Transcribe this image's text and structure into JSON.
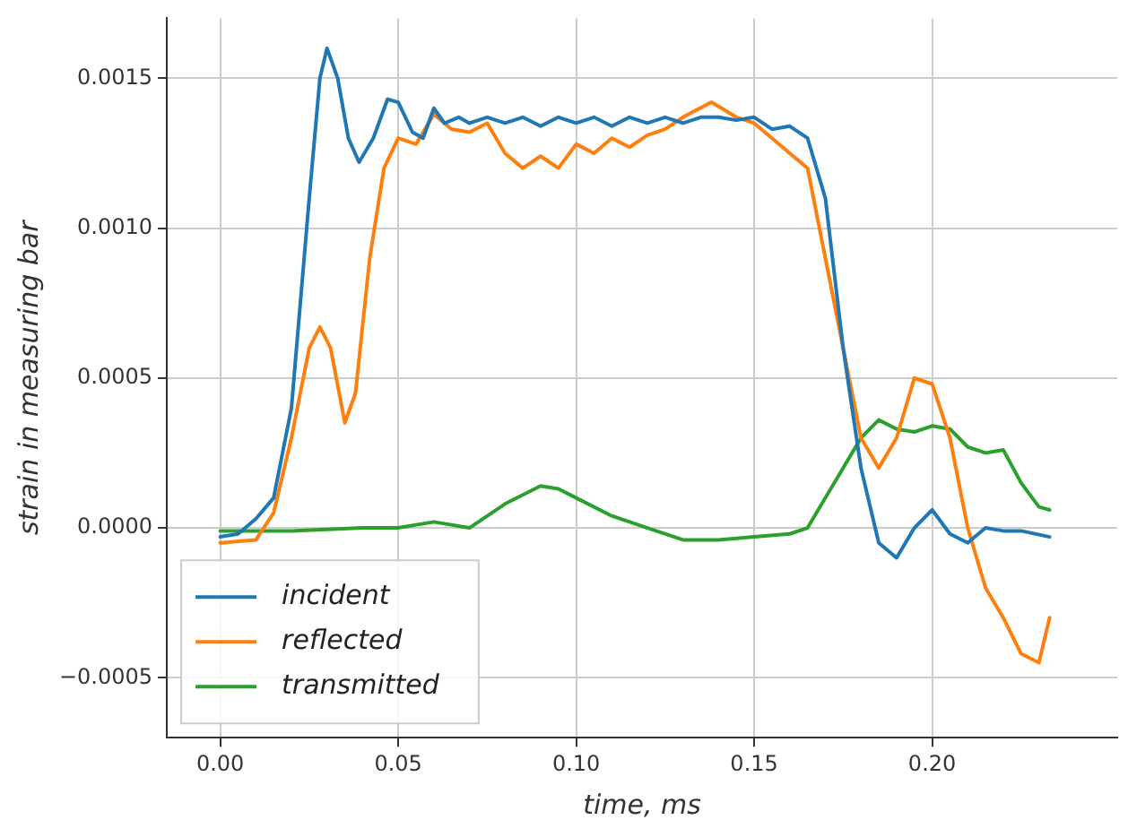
{
  "chart_data": {
    "type": "line",
    "xlabel": "time, ms",
    "ylabel": "strain in measuring bar",
    "xlim": [
      -0.015,
      0.252
    ],
    "ylim": [
      -0.0007,
      0.0017
    ],
    "xticks": [
      {
        "value": 0,
        "label": "0.00"
      },
      {
        "value": 0.05,
        "label": "0.05"
      },
      {
        "value": 0.1,
        "label": "0.10"
      },
      {
        "value": 0.15,
        "label": "0.15"
      },
      {
        "value": 0.2,
        "label": "0.20"
      }
    ],
    "yticks": [
      {
        "value": -0.0005,
        "label": "−0.0005"
      },
      {
        "value": 0,
        "label": "0.0000"
      },
      {
        "value": 0.0005,
        "label": "0.0005"
      },
      {
        "value": 0.001,
        "label": "0.0010"
      },
      {
        "value": 0.0015,
        "label": "0.0015"
      }
    ],
    "grid": true,
    "legend": "bottom left",
    "marker": "none",
    "line_style": "solid",
    "series": [
      {
        "name": "incident",
        "color": "#1f77b4",
        "x": [
          0,
          0.005,
          0.01,
          0.015,
          0.02,
          0.025,
          0.028,
          0.03,
          0.033,
          0.036,
          0.039,
          0.043,
          0.047,
          0.05,
          0.054,
          0.057,
          0.06,
          0.063,
          0.067,
          0.07,
          0.075,
          0.08,
          0.085,
          0.09,
          0.095,
          0.1,
          0.105,
          0.11,
          0.115,
          0.12,
          0.125,
          0.13,
          0.135,
          0.14,
          0.145,
          0.15,
          0.155,
          0.16,
          0.165,
          0.17,
          0.175,
          0.18,
          0.185,
          0.19,
          0.195,
          0.2,
          0.205,
          0.21,
          0.215,
          0.22,
          0.225,
          0.233
        ],
        "values": [
          -3e-05,
          -2e-05,
          3e-05,
          0.0001,
          0.0004,
          0.0011,
          0.0015,
          0.0016,
          0.0015,
          0.0013,
          0.00122,
          0.0013,
          0.00143,
          0.00142,
          0.00132,
          0.0013,
          0.0014,
          0.00135,
          0.00137,
          0.00135,
          0.00137,
          0.00135,
          0.00137,
          0.00134,
          0.00137,
          0.00135,
          0.00137,
          0.00134,
          0.00137,
          0.00135,
          0.00137,
          0.00135,
          0.00137,
          0.00137,
          0.00136,
          0.00137,
          0.00133,
          0.00134,
          0.0013,
          0.0011,
          0.0006,
          0.0002,
          -5e-05,
          -0.0001,
          0,
          6e-05,
          -2e-05,
          -5e-05,
          0,
          -1e-05,
          -1e-05,
          -3e-05
        ]
      },
      {
        "name": "reflected",
        "color": "#ff7f0e",
        "x": [
          0,
          0.01,
          0.015,
          0.02,
          0.025,
          0.028,
          0.031,
          0.035,
          0.038,
          0.042,
          0.046,
          0.05,
          0.055,
          0.06,
          0.065,
          0.07,
          0.075,
          0.08,
          0.085,
          0.09,
          0.095,
          0.1,
          0.105,
          0.11,
          0.115,
          0.12,
          0.125,
          0.13,
          0.138,
          0.145,
          0.15,
          0.155,
          0.16,
          0.165,
          0.17,
          0.175,
          0.18,
          0.185,
          0.19,
          0.195,
          0.2,
          0.205,
          0.21,
          0.215,
          0.22,
          0.225,
          0.23,
          0.233
        ],
        "values": [
          -5e-05,
          -4e-05,
          5e-05,
          0.0003,
          0.0006,
          0.00067,
          0.0006,
          0.00035,
          0.00045,
          0.0009,
          0.0012,
          0.0013,
          0.00128,
          0.00138,
          0.00133,
          0.00132,
          0.00135,
          0.00125,
          0.0012,
          0.00124,
          0.0012,
          0.00128,
          0.00125,
          0.0013,
          0.00127,
          0.00131,
          0.00133,
          0.00137,
          0.00142,
          0.00137,
          0.00135,
          0.0013,
          0.00125,
          0.0012,
          0.0009,
          0.0006,
          0.0003,
          0.0002,
          0.0003,
          0.0005,
          0.00048,
          0.0003,
          0,
          -0.0002,
          -0.0003,
          -0.00042,
          -0.00045,
          -0.0003
        ]
      },
      {
        "name": "transmitted",
        "color": "#2ca02c",
        "x": [
          0,
          0.02,
          0.04,
          0.05,
          0.06,
          0.07,
          0.08,
          0.09,
          0.095,
          0.1,
          0.11,
          0.12,
          0.13,
          0.14,
          0.15,
          0.16,
          0.165,
          0.17,
          0.175,
          0.18,
          0.185,
          0.19,
          0.195,
          0.2,
          0.205,
          0.21,
          0.215,
          0.22,
          0.225,
          0.23,
          0.233
        ],
        "values": [
          -1e-05,
          -1e-05,
          0,
          0,
          2e-05,
          0,
          8e-05,
          0.00014,
          0.00013,
          0.0001,
          4e-05,
          0,
          -4e-05,
          -4e-05,
          -3e-05,
          -2e-05,
          0,
          0.0001,
          0.0002,
          0.0003,
          0.00036,
          0.00033,
          0.00032,
          0.00034,
          0.00033,
          0.00027,
          0.00025,
          0.00026,
          0.00015,
          7e-05,
          6e-05
        ]
      }
    ]
  }
}
